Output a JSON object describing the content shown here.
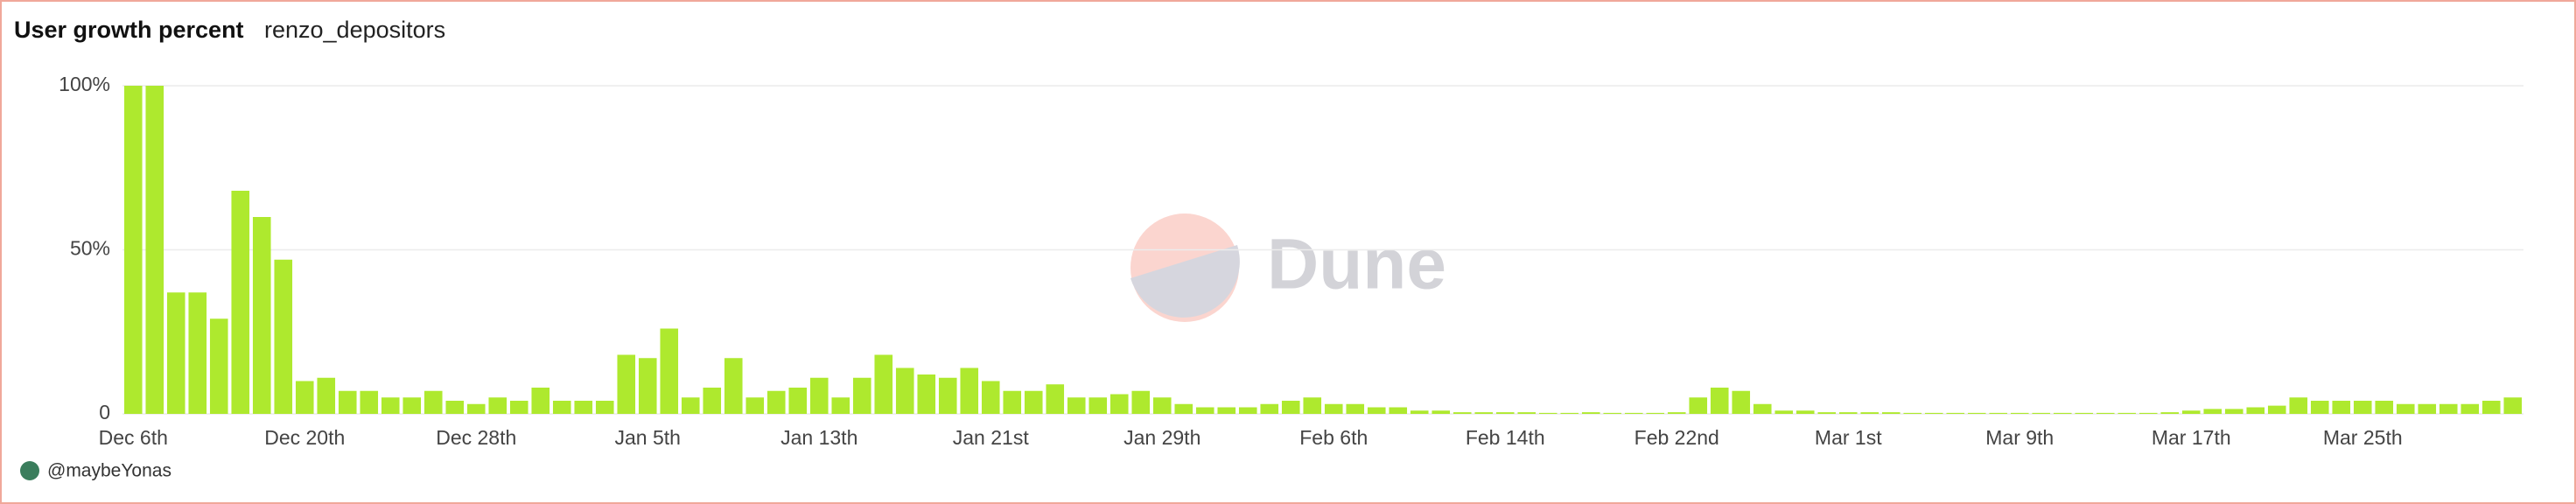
{
  "chart_data": {
    "type": "bar",
    "title": "User growth percent",
    "subtitle": "renzo_depositors",
    "watermark": "Dune",
    "author": "@maybeYonas",
    "color": "#aee92e",
    "categories": [
      "Dec 6th",
      null,
      null,
      null,
      null,
      null,
      null,
      null,
      "Dec 20th",
      null,
      null,
      null,
      null,
      null,
      null,
      null,
      "Dec 28th",
      null,
      null,
      null,
      null,
      null,
      null,
      null,
      "Jan 5th",
      null,
      null,
      null,
      null,
      null,
      null,
      null,
      "Jan 13th",
      null,
      null,
      null,
      null,
      null,
      null,
      null,
      "Jan 21st",
      null,
      null,
      null,
      null,
      null,
      null,
      null,
      "Jan 29th",
      null,
      null,
      null,
      null,
      null,
      null,
      null,
      "Feb 6th",
      null,
      null,
      null,
      null,
      null,
      null,
      null,
      "Feb 14th",
      null,
      null,
      null,
      null,
      null,
      null,
      null,
      "Feb 22nd",
      null,
      null,
      null,
      null,
      null,
      null,
      null,
      "Mar 1st",
      null,
      null,
      null,
      null,
      null,
      null,
      null,
      "Mar 9th",
      null,
      null,
      null,
      null,
      null,
      null,
      null,
      "Mar 17th",
      null,
      null,
      null,
      null,
      null,
      null,
      null,
      "Mar 25th",
      null,
      null,
      null,
      null,
      null,
      null,
      null
    ],
    "values": [
      100,
      100,
      37,
      37,
      29,
      68,
      60,
      47,
      10,
      11,
      7,
      7,
      5,
      5,
      7,
      4,
      3,
      5,
      4,
      8,
      4,
      4,
      4,
      18,
      17,
      26,
      5,
      8,
      17,
      5,
      7,
      8,
      11,
      5,
      11,
      18,
      14,
      12,
      11,
      14,
      10,
      7,
      7,
      9,
      5,
      5,
      6,
      7,
      5,
      3,
      2,
      2,
      2,
      3,
      4,
      5,
      3,
      3,
      2,
      2,
      1,
      1,
      0.5,
      0.5,
      0.5,
      0.5,
      0.3,
      0.3,
      0.5,
      0.3,
      0.3,
      0.3,
      0.5,
      5,
      8,
      7,
      3,
      1,
      1,
      0.5,
      0.5,
      0.5,
      0.5,
      0.3,
      0.3,
      0.3,
      0.3,
      0.3,
      0.3,
      0.3,
      0.3,
      0.3,
      0.3,
      0.3,
      0.3,
      0.5,
      1,
      1.5,
      1.5,
      2,
      2.5,
      5,
      4,
      4,
      4,
      4,
      3,
      3,
      3,
      3,
      4,
      5
    ],
    "ylim": [
      0,
      100
    ],
    "yticks": [
      0,
      {
        "value": 50,
        "label": "50%"
      },
      {
        "value": 100,
        "label": "100%"
      }
    ],
    "grid": true
  }
}
